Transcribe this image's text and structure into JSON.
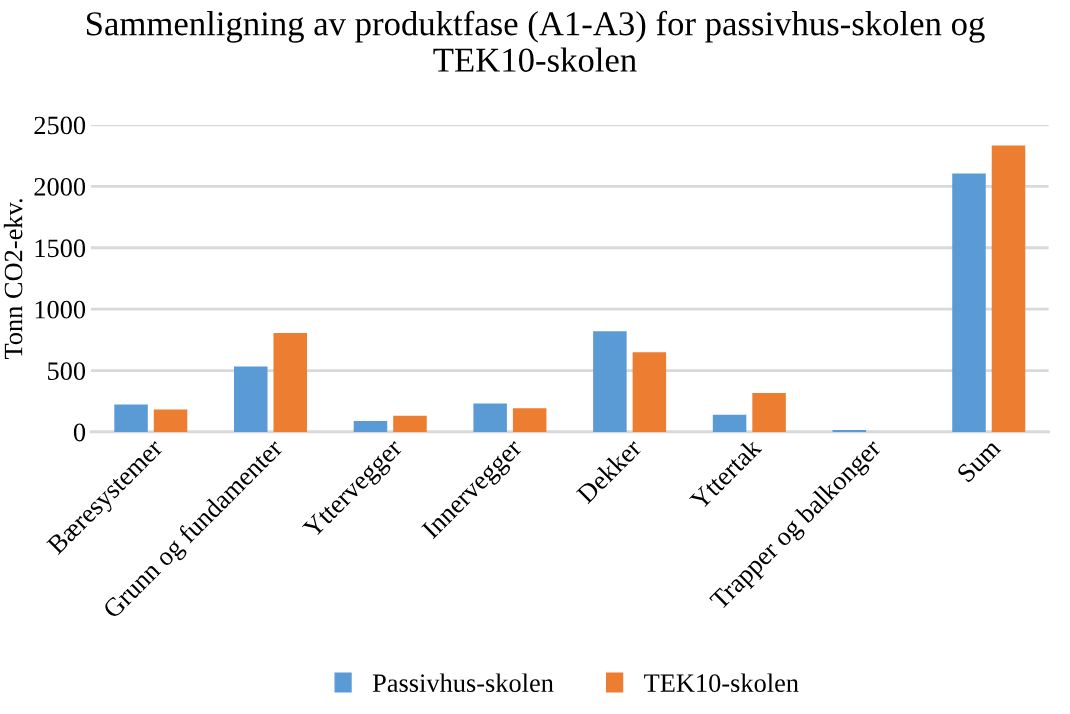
{
  "chart_data": {
    "type": "bar",
    "title": "Sammenligning av produktfase (A1-A3) for passivhus-skolen og TEK10-skolen",
    "ylabel": "Tonn CO2-ekv.",
    "categories": [
      "Bæresystemer",
      "Grunn og fundamenter",
      "Yttervegger",
      "Innervegger",
      "Dekker",
      "Yttertak",
      "Trapper og balkonger",
      "Sum"
    ],
    "series": [
      {
        "name": "Passivhus-skolen",
        "color": "#5b9bd5",
        "values": [
          223,
          533,
          89,
          231,
          821,
          140,
          16,
          2104
        ]
      },
      {
        "name": "TEK10-skolen",
        "color": "#ed7d31",
        "values": [
          183,
          805,
          132,
          194,
          649,
          318,
          0,
          2333
        ]
      }
    ],
    "ylim": [
      0,
      2500
    ],
    "yticks": [
      0,
      500,
      1000,
      1500,
      2000,
      2500
    ],
    "grid": "y",
    "legend": "bottom"
  }
}
